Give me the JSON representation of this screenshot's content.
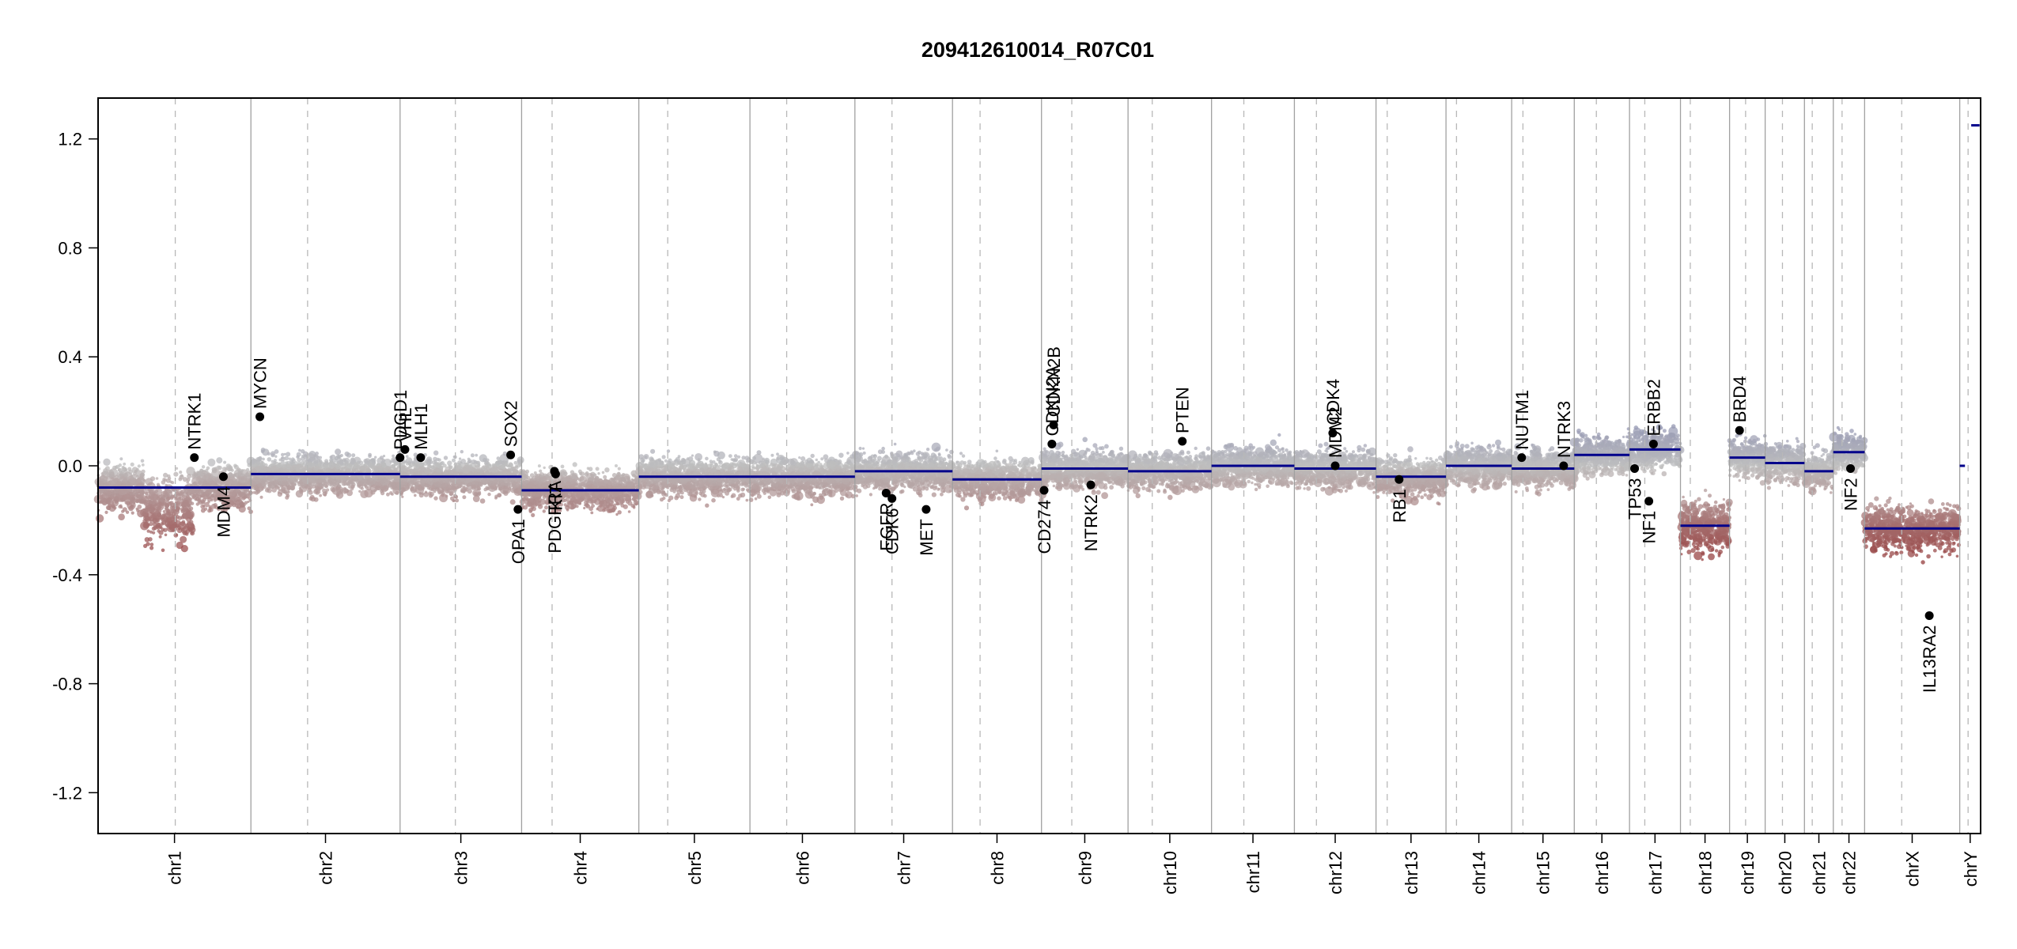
{
  "chart_data": {
    "type": "scatter",
    "title": "209412610014_R07C01",
    "xlabel": "",
    "ylabel": "",
    "ylim": [
      -1.35,
      1.35
    ],
    "y_ticks": [
      1.2,
      0.8,
      0.4,
      0.0,
      -0.4,
      -0.8,
      -1.2
    ],
    "y_tick_labels": [
      "1.2",
      "0.8",
      "0.4",
      "0.0",
      "-0.4",
      "-0.8",
      "-1.2"
    ],
    "grid": false,
    "legend": "none",
    "colors": {
      "segment": "#00008B",
      "gain": "#6A6FA8",
      "neutral": "#BEBEBE",
      "loss": "#8B1A1A",
      "gene_point": "#000000"
    },
    "chromosomes": [
      {
        "name": "chr1",
        "length": 249,
        "centromere": 0.505,
        "segments": [
          {
            "from": 0.0,
            "to": 1.0,
            "value": -0.08
          }
        ]
      },
      {
        "name": "chr2",
        "length": 243,
        "centromere": 0.38,
        "segments": [
          {
            "from": 0.0,
            "to": 1.0,
            "value": -0.03
          }
        ]
      },
      {
        "name": "chr3",
        "length": 198,
        "centromere": 0.455,
        "segments": [
          {
            "from": 0.0,
            "to": 1.0,
            "value": -0.04
          }
        ]
      },
      {
        "name": "chr4",
        "length": 191,
        "centromere": 0.26,
        "segments": [
          {
            "from": 0.0,
            "to": 1.0,
            "value": -0.09
          }
        ]
      },
      {
        "name": "chr5",
        "length": 181,
        "centromere": 0.26,
        "segments": [
          {
            "from": 0.0,
            "to": 1.0,
            "value": -0.04
          }
        ]
      },
      {
        "name": "chr6",
        "length": 171,
        "centromere": 0.35,
        "segments": [
          {
            "from": 0.0,
            "to": 1.0,
            "value": -0.04
          }
        ]
      },
      {
        "name": "chr7",
        "length": 159,
        "centromere": 0.38,
        "segments": [
          {
            "from": 0.0,
            "to": 1.0,
            "value": -0.02
          }
        ]
      },
      {
        "name": "chr8",
        "length": 145,
        "centromere": 0.31,
        "segments": [
          {
            "from": 0.0,
            "to": 1.0,
            "value": -0.05
          }
        ]
      },
      {
        "name": "chr9",
        "length": 141,
        "centromere": 0.35,
        "segments": [
          {
            "from": 0.0,
            "to": 1.0,
            "value": -0.01
          }
        ]
      },
      {
        "name": "chr10",
        "length": 136,
        "centromere": 0.29,
        "segments": [
          {
            "from": 0.0,
            "to": 1.0,
            "value": -0.02
          }
        ]
      },
      {
        "name": "chr11",
        "length": 135,
        "centromere": 0.39,
        "segments": [
          {
            "from": 0.0,
            "to": 1.0,
            "value": 0.0
          }
        ]
      },
      {
        "name": "chr12",
        "length": 133,
        "centromere": 0.27,
        "segments": [
          {
            "from": 0.0,
            "to": 1.0,
            "value": -0.01
          }
        ]
      },
      {
        "name": "chr13",
        "length": 114,
        "centromere": 0.16,
        "segments": [
          {
            "from": 0.0,
            "to": 1.0,
            "value": -0.04
          }
        ]
      },
      {
        "name": "chr14",
        "length": 107,
        "centromere": 0.16,
        "segments": [
          {
            "from": 0.0,
            "to": 1.0,
            "value": 0.0
          }
        ]
      },
      {
        "name": "chr15",
        "length": 102,
        "centromere": 0.18,
        "segments": [
          {
            "from": 0.0,
            "to": 1.0,
            "value": -0.01
          }
        ]
      },
      {
        "name": "chr16",
        "length": 90,
        "centromere": 0.4,
        "segments": [
          {
            "from": 0.0,
            "to": 1.0,
            "value": 0.04
          }
        ]
      },
      {
        "name": "chr17",
        "length": 83,
        "centromere": 0.3,
        "segments": [
          {
            "from": 0.0,
            "to": 1.0,
            "value": 0.06
          }
        ]
      },
      {
        "name": "chr18",
        "length": 80,
        "centromere": 0.2,
        "segments": [
          {
            "from": 0.0,
            "to": 1.0,
            "value": -0.22
          }
        ]
      },
      {
        "name": "chr19",
        "length": 58,
        "centromere": 0.45,
        "segments": [
          {
            "from": 0.0,
            "to": 1.0,
            "value": 0.03
          }
        ]
      },
      {
        "name": "chr20",
        "length": 64,
        "centromere": 0.44,
        "segments": [
          {
            "from": 0.0,
            "to": 1.0,
            "value": 0.01
          }
        ]
      },
      {
        "name": "chr21",
        "length": 47,
        "centromere": 0.27,
        "segments": [
          {
            "from": 0.0,
            "to": 1.0,
            "value": -0.02
          }
        ]
      },
      {
        "name": "chr22",
        "length": 51,
        "centromere": 0.28,
        "segments": [
          {
            "from": 0.0,
            "to": 1.0,
            "value": 0.05
          }
        ]
      },
      {
        "name": "chrX",
        "length": 155,
        "centromere": 0.39,
        "segments": [
          {
            "from": 0.0,
            "to": 1.0,
            "value": -0.23
          }
        ]
      },
      {
        "name": "chrY",
        "length": 34,
        "centromere": 0.4,
        "segments": [
          {
            "from": 0.0,
            "to": 0.25,
            "value": 0.0
          },
          {
            "from": 0.55,
            "to": 0.95,
            "value": 1.25
          }
        ]
      }
    ],
    "genes": [
      {
        "name": "NTRK1",
        "chr": "chr1",
        "pos": 0.63,
        "value": 0.03,
        "label_side": "above"
      },
      {
        "name": "MDM4",
        "chr": "chr1",
        "pos": 0.82,
        "value": -0.04,
        "label_side": "below"
      },
      {
        "name": "MYCN",
        "chr": "chr2",
        "pos": 0.06,
        "value": 0.18,
        "label_side": "above"
      },
      {
        "name": "PDGD1",
        "chr": "chr3",
        "pos": 0.0,
        "value": 0.03,
        "label_side": "above"
      },
      {
        "name": "VHL",
        "chr": "chr3",
        "pos": 0.04,
        "value": 0.06,
        "label_side": "above"
      },
      {
        "name": "MLH1",
        "chr": "chr3",
        "pos": 0.17,
        "value": 0.03,
        "label_side": "above"
      },
      {
        "name": "SOX2",
        "chr": "chr3",
        "pos": 0.91,
        "value": 0.04,
        "label_side": "above"
      },
      {
        "name": "OPA1",
        "chr": "chr3",
        "pos": 0.97,
        "value": -0.16,
        "label_side": "below"
      },
      {
        "name": "PDGFRA",
        "chr": "chr4",
        "pos": 0.28,
        "value": -0.02,
        "label_side": "below"
      },
      {
        "name": "KIT",
        "chr": "chr4",
        "pos": 0.29,
        "value": -0.03,
        "label_side": "below"
      },
      {
        "name": "EGFR",
        "chr": "chr7",
        "pos": 0.32,
        "value": -0.1,
        "label_side": "below"
      },
      {
        "name": "CDK6",
        "chr": "chr7",
        "pos": 0.38,
        "value": -0.12,
        "label_side": "below"
      },
      {
        "name": "MET",
        "chr": "chr7",
        "pos": 0.73,
        "value": -0.16,
        "label_side": "below"
      },
      {
        "name": "CD274",
        "chr": "chr9",
        "pos": 0.03,
        "value": -0.09,
        "label_side": "below"
      },
      {
        "name": "CDKN2A",
        "chr": "chr9",
        "pos": 0.12,
        "value": 0.08,
        "label_side": "above"
      },
      {
        "name": "CDKN2B",
        "chr": "chr9",
        "pos": 0.14,
        "value": 0.15,
        "label_side": "above"
      },
      {
        "name": "NTRK2",
        "chr": "chr9",
        "pos": 0.57,
        "value": -0.07,
        "label_side": "below"
      },
      {
        "name": "PTEN",
        "chr": "chr10",
        "pos": 0.65,
        "value": 0.09,
        "label_side": "above"
      },
      {
        "name": "CDK4",
        "chr": "chr12",
        "pos": 0.47,
        "value": 0.12,
        "label_side": "above"
      },
      {
        "name": "MDM2",
        "chr": "chr12",
        "pos": 0.5,
        "value": 0.0,
        "label_side": "above"
      },
      {
        "name": "RB1",
        "chr": "chr13",
        "pos": 0.33,
        "value": -0.05,
        "label_side": "below"
      },
      {
        "name": "NUTM1",
        "chr": "chr15",
        "pos": 0.16,
        "value": 0.03,
        "label_side": "above"
      },
      {
        "name": "NTRK3",
        "chr": "chr15",
        "pos": 0.83,
        "value": 0.0,
        "label_side": "above"
      },
      {
        "name": "TP53",
        "chr": "chr17",
        "pos": 0.1,
        "value": -0.01,
        "label_side": "below"
      },
      {
        "name": "NF1",
        "chr": "chr17",
        "pos": 0.38,
        "value": -0.13,
        "label_side": "below"
      },
      {
        "name": "ERBB2",
        "chr": "chr17",
        "pos": 0.47,
        "value": 0.08,
        "label_side": "above"
      },
      {
        "name": "BRD4",
        "chr": "chr19",
        "pos": 0.28,
        "value": 0.13,
        "label_side": "above"
      },
      {
        "name": "NF2",
        "chr": "chr22",
        "pos": 0.55,
        "value": -0.01,
        "label_side": "below"
      },
      {
        "name": "IL13RA2",
        "chr": "chrX",
        "pos": 0.68,
        "value": -0.55,
        "label_side": "below"
      }
    ]
  }
}
